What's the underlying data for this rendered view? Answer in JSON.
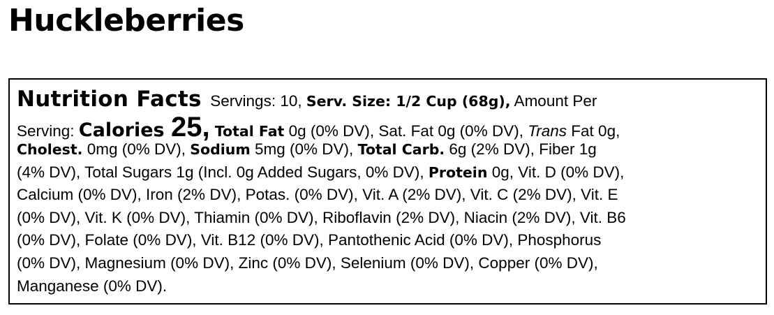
{
  "title": "Huckleberries",
  "label": {
    "lines": [
      [
        {
          "s": "heavy-xl",
          "t": "Nutrition Facts"
        },
        {
          "s": "",
          "t": "  Servings: 10, "
        },
        {
          "s": "heavy",
          "t": "Serv. Size: 1/2 Cup (68g),"
        },
        {
          "s": "",
          "t": " Amount Per"
        }
      ],
      [
        {
          "s": "",
          "t": "Serving: "
        },
        {
          "s": "heavy-l",
          "t": "Calories "
        },
        {
          "s": "heavy-xxl",
          "t": "25,"
        },
        {
          "s": "heavy",
          "t": " Total Fat"
        },
        {
          "s": "",
          "t": " 0g (0% DV), Sat. Fat 0g (0% DV), "
        },
        {
          "s": "italic",
          "t": "Trans"
        },
        {
          "s": "",
          "t": " Fat 0g,"
        }
      ],
      [
        {
          "s": "heavy",
          "t": "Cholest."
        },
        {
          "s": "",
          "t": " 0mg (0% DV), "
        },
        {
          "s": "heavy",
          "t": "Sodium"
        },
        {
          "s": "",
          "t": " 5mg (0% DV), "
        },
        {
          "s": "heavy",
          "t": "Total Carb."
        },
        {
          "s": "",
          "t": " 6g (2% DV), Fiber 1g"
        }
      ],
      [
        {
          "s": "",
          "t": "(4% DV), Total Sugars 1g (Incl. 0g Added Sugars, 0% DV), "
        },
        {
          "s": "heavy",
          "t": "Protein"
        },
        {
          "s": "",
          "t": " 0g, Vit. D (0% DV),"
        }
      ],
      [
        {
          "s": "",
          "t": "Calcium (0% DV), Iron (2% DV), Potas. (0% DV), Vit. A (2% DV), Vit. C (2% DV), Vit. E"
        }
      ],
      [
        {
          "s": "",
          "t": "(0% DV), Vit. K (0% DV), Thiamin (0% DV), Riboflavin (2% DV), Niacin (2% DV), Vit. B6"
        }
      ],
      [
        {
          "s": "",
          "t": "(0% DV), Folate (0% DV), Vit. B12 (0% DV), Pantothenic Acid (0% DV), Phosphorus"
        }
      ],
      [
        {
          "s": "",
          "t": "(0% DV), Magnesium (0% DV), Zinc (0% DV), Selenium (0% DV), Copper (0% DV),"
        }
      ],
      [
        {
          "s": "",
          "t": "Manganese (0% DV)."
        }
      ]
    ]
  }
}
